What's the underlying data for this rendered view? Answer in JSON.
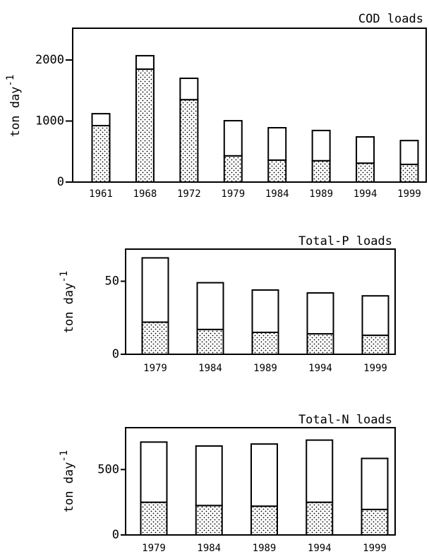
{
  "chart_data": [
    {
      "type": "bar",
      "stacked": true,
      "title": "COD loads",
      "ylabel": {
        "text": "ton day",
        "superscript": "-1"
      },
      "categories": [
        "1961",
        "1968",
        "1972",
        "1979",
        "1984",
        "1989",
        "1994",
        "1999"
      ],
      "series": [
        {
          "pattern": "dots",
          "color": "#ffffff",
          "values": [
            925,
            1850,
            1350,
            430,
            360,
            350,
            310,
            290
          ]
        },
        {
          "pattern": "none",
          "color": "#ffffff",
          "values": [
            195,
            220,
            350,
            575,
            530,
            495,
            430,
            390
          ]
        }
      ],
      "ylim": [
        0,
        2520
      ],
      "yticks": [
        0,
        1000,
        2000
      ]
    },
    {
      "type": "bar",
      "stacked": true,
      "title": "Total-P loads",
      "ylabel": {
        "text": "ton day",
        "superscript": "-1"
      },
      "categories": [
        "1979",
        "1984",
        "1989",
        "1994",
        "1999"
      ],
      "series": [
        {
          "pattern": "dots",
          "color": "#ffffff",
          "values": [
            22,
            17,
            15,
            14,
            13
          ]
        },
        {
          "pattern": "none",
          "color": "#ffffff",
          "values": [
            44,
            32,
            29,
            28,
            27
          ]
        }
      ],
      "ylim": [
        0,
        72
      ],
      "yticks": [
        0,
        50
      ]
    },
    {
      "type": "bar",
      "stacked": true,
      "title": "Total-N loads",
      "ylabel": {
        "text": "ton day",
        "superscript": "-1"
      },
      "categories": [
        "1979",
        "1984",
        "1989",
        "1994",
        "1999"
      ],
      "series": [
        {
          "pattern": "dots",
          "color": "#ffffff",
          "values": [
            250,
            225,
            220,
            250,
            195
          ]
        },
        {
          "pattern": "none",
          "color": "#ffffff",
          "values": [
            460,
            455,
            475,
            475,
            390
          ]
        }
      ],
      "ylim": [
        0,
        820
      ],
      "yticks": [
        0,
        500
      ]
    }
  ]
}
